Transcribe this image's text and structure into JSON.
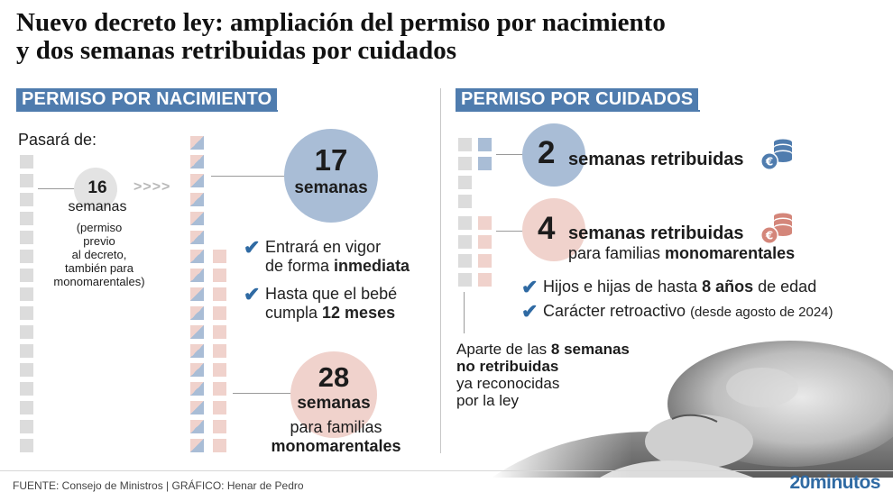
{
  "title": {
    "line1": "Nuevo decreto ley: ampliación del permiso por nacimiento",
    "line2": "y dos semanas retribuidas por cuidados"
  },
  "left": {
    "header": "PERMISO POR NACIMIENTO",
    "pasara_de": "Pasará de:",
    "old": {
      "number": "16",
      "unit": "semanas",
      "note_lines": [
        "(permiso",
        "previo",
        "al decreto,",
        "también para",
        "monomarentales)"
      ]
    },
    "arrows": ">>>>",
    "new": {
      "number": "17",
      "unit": "semanas"
    },
    "bullets": [
      {
        "line1": "Entrará en vigor",
        "line2_pre": "de forma ",
        "line2_bold": "inmediata"
      },
      {
        "line1": "Hasta que el bebé",
        "line2_pre": "cumpla ",
        "line2_bold": "12 meses"
      }
    ],
    "mono": {
      "number": "28",
      "unit": "semanas",
      "line1": "para familias",
      "line2": "monomarentales"
    }
  },
  "right": {
    "header": "PERMISO POR CUIDADOS",
    "item1": {
      "number": "2",
      "text": "semanas retribuidas",
      "icon": "coins-icon",
      "icon_color": "#4f7cae"
    },
    "item2": {
      "number": "4",
      "text": "semanas retribuidas",
      "sub_pre": "para familias ",
      "sub_bold": "monomarentales",
      "icon": "coins-icon",
      "icon_color": "#d4867a"
    },
    "bullets": [
      {
        "pre": "Hijos e hijas de hasta ",
        "bold": "8 años",
        "post": " de edad"
      },
      {
        "pre": "Carácter retroactivo ",
        "small": "(desde agosto de 2024)"
      }
    ],
    "note": {
      "line1_pre": "Aparte de las ",
      "line1_bold": "8 semanas",
      "line2_bold": "no retribuidas",
      "line3": "ya reconocidas",
      "line4": "por la ley"
    }
  },
  "footer": {
    "source": "FUENTE: Consejo de Ministros  |  GRÁFICO: Henar de Pedro",
    "brand_digits": "20",
    "brand_word": "minutos"
  },
  "colors": {
    "accent_blue": "#4f7cae",
    "circle_blue": "#a9bdd6",
    "circle_pink": "#f0d2cc",
    "square_gray": "#dcdcdc"
  }
}
